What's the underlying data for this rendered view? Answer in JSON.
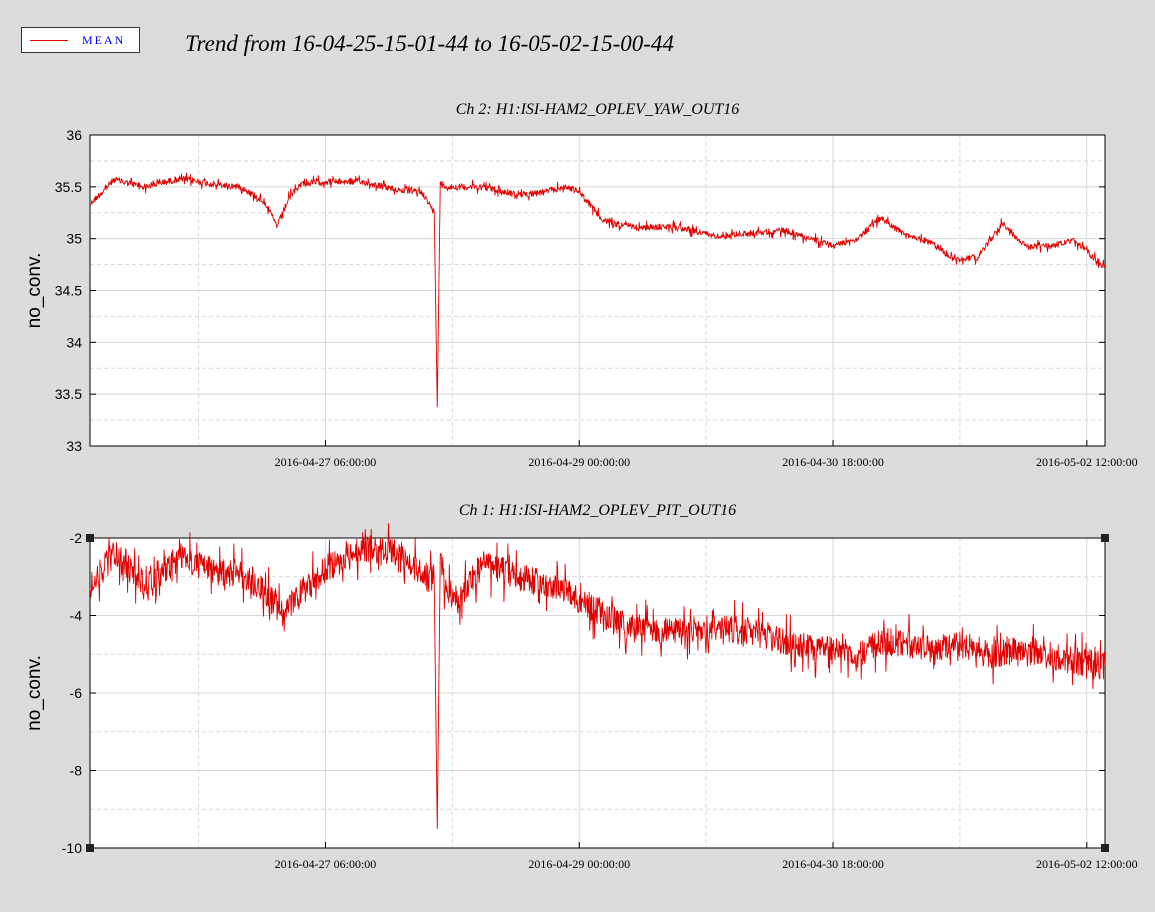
{
  "legend": {
    "label": "MEAN",
    "color": "#e00000"
  },
  "title": "Trend from 16-04-25-15-01-44 to 16-05-02-15-00-44",
  "chart_data": [
    {
      "type": "line",
      "title": "Ch 2: H1:ISI-HAM2_OPLEV_YAW_OUT16",
      "ylabel": "no_conv.",
      "xlabel": "",
      "ylim": [
        33,
        36
      ],
      "yticks": [
        "36",
        "35.5",
        "35",
        "34.5",
        "34",
        "33.5",
        "33"
      ],
      "xticks": [
        "2016-04-27 06:00:00",
        "2016-04-29 00:00:00",
        "2016-04-30 18:00:00",
        "2016-05-02 12:00:00"
      ],
      "x_range": [
        "2016-04-25 15:01:44",
        "2016-05-02 15:00:44"
      ],
      "grid": true,
      "series": [
        {
          "name": "MEAN",
          "color": "#e00000",
          "x": [
            "2016-04-25 15:01",
            "2016-04-25 19:00",
            "2016-04-26 00:00",
            "2016-04-26 06:00",
            "2016-04-26 12:00",
            "2016-04-26 16:00",
            "2016-04-26 20:00",
            "2016-04-26 22:00",
            "2016-04-27 00:00",
            "2016-04-27 02:00",
            "2016-04-27 06:00",
            "2016-04-27 12:00",
            "2016-04-27 18:00",
            "2016-04-27 22:00",
            "2016-04-28 00:00",
            "2016-04-28 00:30",
            "2016-04-28 01:00",
            "2016-04-28 02:00",
            "2016-04-28 04:00",
            "2016-04-28 08:00",
            "2016-04-28 14:00",
            "2016-04-28 18:00",
            "2016-04-28 22:00",
            "2016-04-29 00:00",
            "2016-04-29 04:00",
            "2016-04-29 10:00",
            "2016-04-29 16:00",
            "2016-04-29 22:00",
            "2016-04-30 04:00",
            "2016-04-30 10:00",
            "2016-04-30 18:00",
            "2016-04-30 22:00",
            "2016-05-01 02:00",
            "2016-05-01 06:00",
            "2016-05-01 10:00",
            "2016-05-01 14:00",
            "2016-05-01 18:00",
            "2016-05-01 22:00",
            "2016-05-02 02:00",
            "2016-05-02 06:00",
            "2016-05-02 10:00",
            "2016-05-02 15:00"
          ],
          "y": [
            35.33,
            35.57,
            35.5,
            35.58,
            35.52,
            35.5,
            35.35,
            35.12,
            35.4,
            35.53,
            35.55,
            35.55,
            35.47,
            35.45,
            35.25,
            33.38,
            35.55,
            35.5,
            35.5,
            35.5,
            35.42,
            35.45,
            35.5,
            35.45,
            35.17,
            35.1,
            35.12,
            35.03,
            35.05,
            35.08,
            34.93,
            35.0,
            35.2,
            35.03,
            34.97,
            34.8,
            34.82,
            35.15,
            34.92,
            34.93,
            34.98,
            34.72
          ]
        }
      ]
    },
    {
      "type": "line",
      "title": "Ch 1: H1:ISI-HAM2_OPLEV_PIT_OUT16",
      "ylabel": "no_conv.",
      "xlabel": "",
      "ylim": [
        -10,
        -2
      ],
      "yticks": [
        "-2",
        "-4",
        "-6",
        "-8",
        "-10"
      ],
      "xticks": [
        "2016-04-27 06:00:00",
        "2016-04-29 00:00:00",
        "2016-04-30 18:00:00",
        "2016-05-02 12:00:00"
      ],
      "x_range": [
        "2016-04-25 15:01:44",
        "2016-05-02 15:00:44"
      ],
      "grid": true,
      "series": [
        {
          "name": "MEAN",
          "color": "#e00000",
          "x": [
            "2016-04-25 15:01",
            "2016-04-25 19:00",
            "2016-04-26 00:00",
            "2016-04-26 06:00",
            "2016-04-26 12:00",
            "2016-04-26 16:00",
            "2016-04-26 20:00",
            "2016-04-26 23:00",
            "2016-04-27 02:00",
            "2016-04-27 06:00",
            "2016-04-27 12:00",
            "2016-04-27 18:00",
            "2016-04-27 22:00",
            "2016-04-28 00:00",
            "2016-04-28 00:30",
            "2016-04-28 01:00",
            "2016-04-28 02:00",
            "2016-04-28 04:00",
            "2016-04-28 08:00",
            "2016-04-28 14:00",
            "2016-04-28 18:00",
            "2016-04-28 22:00",
            "2016-04-29 00:00",
            "2016-04-29 06:00",
            "2016-04-29 12:00",
            "2016-04-29 18:00",
            "2016-04-30 00:00",
            "2016-04-30 06:00",
            "2016-04-30 12:00",
            "2016-04-30 18:00",
            "2016-04-30 22:00",
            "2016-05-01 02:00",
            "2016-05-01 06:00",
            "2016-05-01 10:00",
            "2016-05-01 14:00",
            "2016-05-01 20:00",
            "2016-05-02 02:00",
            "2016-05-02 08:00",
            "2016-05-02 15:00"
          ],
          "y": [
            -3.3,
            -2.4,
            -3.2,
            -2.5,
            -2.9,
            -2.9,
            -3.4,
            -4.0,
            -3.4,
            -2.8,
            -2.3,
            -2.4,
            -2.9,
            -3.2,
            -9.5,
            -2.4,
            -3.4,
            -3.5,
            -2.7,
            -3.0,
            -3.2,
            -3.3,
            -3.6,
            -4.2,
            -4.4,
            -4.4,
            -4.3,
            -4.5,
            -4.8,
            -4.9,
            -5.0,
            -4.7,
            -4.7,
            -4.9,
            -4.7,
            -5.0,
            -4.9,
            -5.1,
            -5.3
          ]
        }
      ]
    }
  ]
}
